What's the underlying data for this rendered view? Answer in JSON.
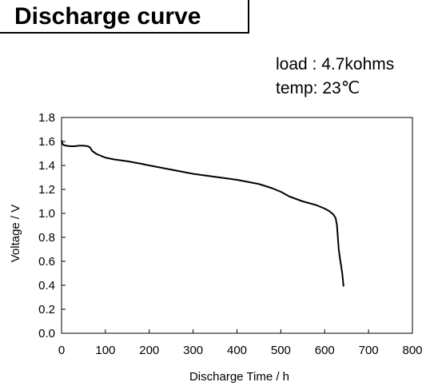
{
  "header": {
    "title": "Discharge curve"
  },
  "conditions": {
    "load": "load : 4.7kohms",
    "temp": "temp: 23℃"
  },
  "colors": {
    "axis": "#000000",
    "curve": "#000000",
    "background": "#ffffff"
  },
  "chart_data": {
    "type": "line",
    "title": "Discharge curve",
    "xlabel": "Discharge Time / h",
    "ylabel": "Voltage / V",
    "xlim": [
      0,
      800
    ],
    "ylim": [
      0.0,
      1.8
    ],
    "grid": false,
    "legend": "none",
    "x_ticks": [
      0,
      100,
      200,
      300,
      400,
      500,
      600,
      700,
      800
    ],
    "x_tick_labels": [
      "0",
      "100",
      "200",
      "300",
      "400",
      "500",
      "600",
      "700",
      "800"
    ],
    "y_ticks": [
      0.0,
      0.2,
      0.4,
      0.6,
      0.8,
      1.0,
      1.2,
      1.4,
      1.6,
      1.8
    ],
    "y_tick_labels": [
      "0.0",
      "0.2",
      "0.4",
      "0.6",
      "0.8",
      "1.0",
      "1.2",
      "1.4",
      "1.6",
      "1.8"
    ],
    "series": [
      {
        "x": [
          0,
          2,
          5,
          10,
          20,
          30,
          40,
          50,
          60,
          65,
          70,
          80,
          90,
          100,
          120,
          150,
          180,
          200,
          250,
          300,
          350,
          400,
          450,
          480,
          500,
          520,
          550,
          580,
          600,
          610,
          620,
          625,
          628,
          630,
          632,
          635,
          640,
          643
        ],
        "y": [
          1.61,
          1.58,
          1.57,
          1.565,
          1.56,
          1.56,
          1.565,
          1.565,
          1.56,
          1.55,
          1.52,
          1.495,
          1.48,
          1.465,
          1.45,
          1.435,
          1.415,
          1.4,
          1.365,
          1.33,
          1.305,
          1.28,
          1.245,
          1.21,
          1.18,
          1.14,
          1.1,
          1.07,
          1.04,
          1.02,
          0.99,
          0.96,
          0.9,
          0.8,
          0.7,
          0.62,
          0.5,
          0.39
        ]
      }
    ]
  }
}
